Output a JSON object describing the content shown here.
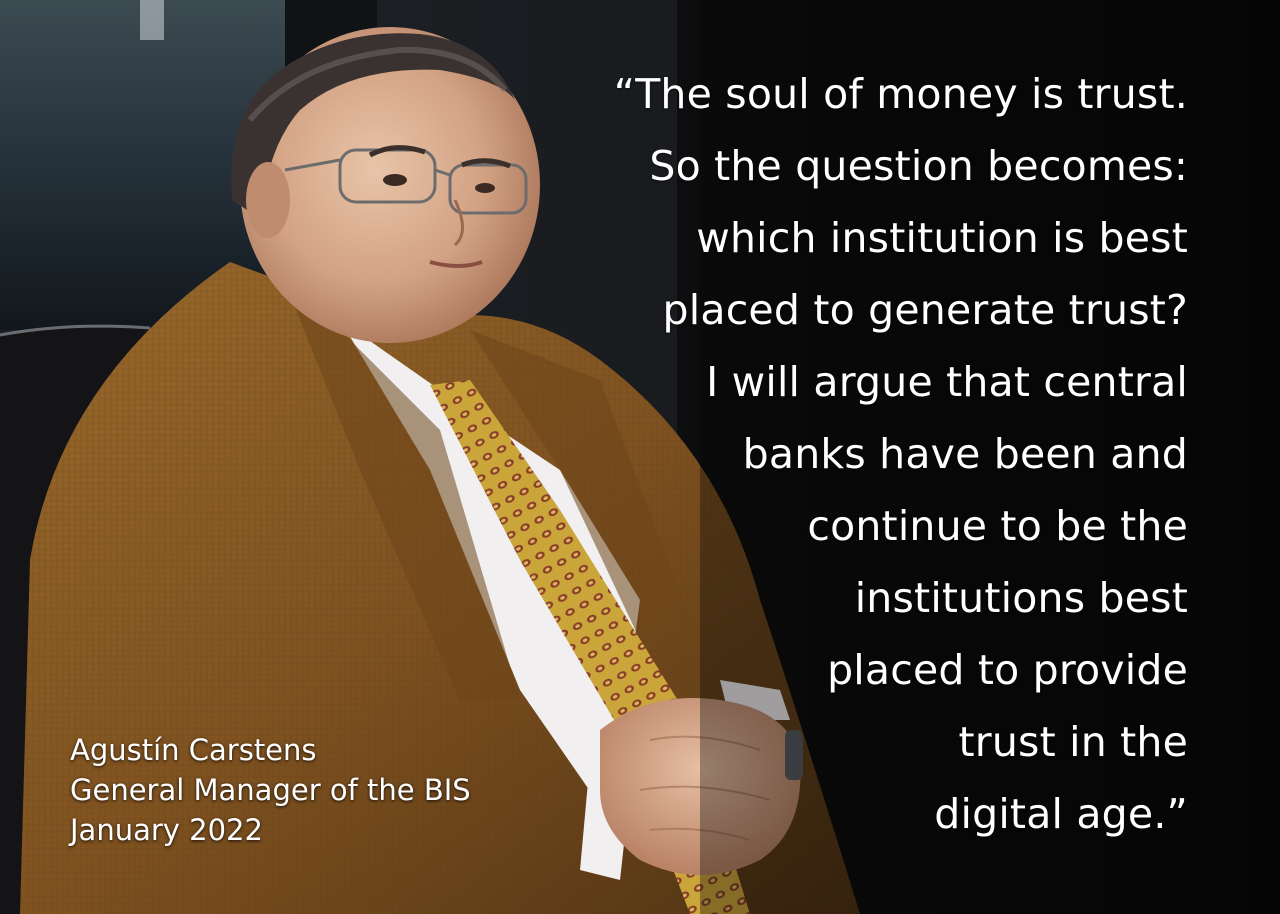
{
  "quote": {
    "lines": [
      "“The soul of money is trust.",
      "So the question becomes:",
      "which institution is best",
      "placed to generate trust?",
      "I will argue that central",
      "banks have been and",
      "continue to be the",
      "institutions best",
      "placed to provide",
      "trust in the",
      "digital age.”"
    ]
  },
  "attribution": {
    "name": "Agustín Carstens",
    "role": "General Manager of the BIS",
    "date": "January 2022"
  },
  "colors": {
    "background": "#080808",
    "text": "#ffffff",
    "jacket": "#8a5a22",
    "tie": "#c9a53a"
  }
}
